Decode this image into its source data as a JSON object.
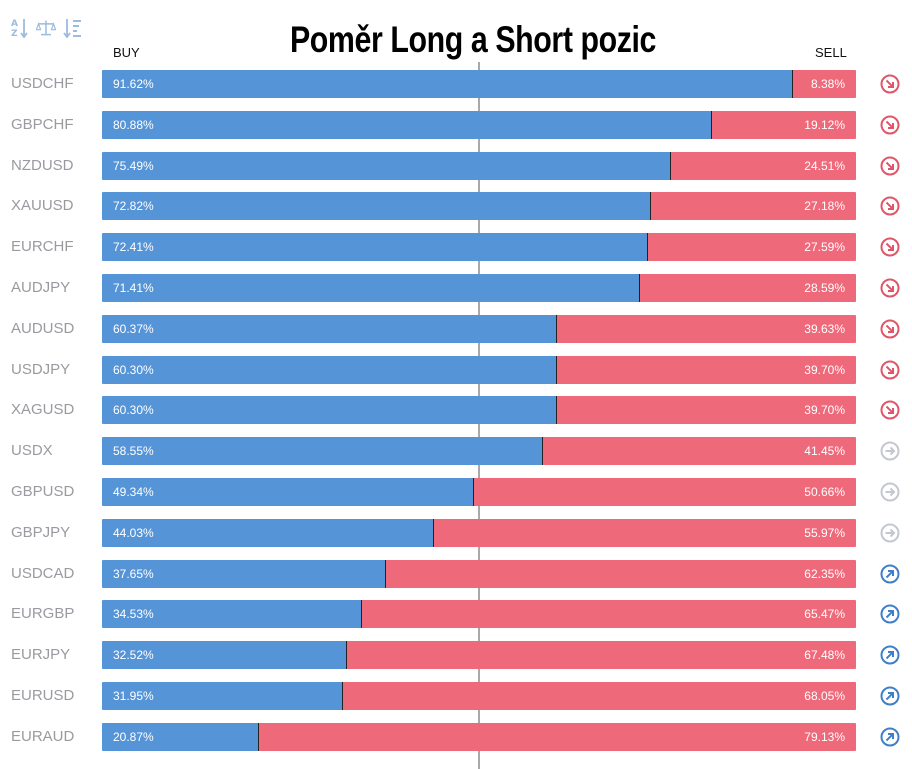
{
  "title": "Poměr Long a Short pozic",
  "labels": {
    "buy": "BUY",
    "sell": "SELL"
  },
  "toolbar": [
    {
      "name": "sort-alpha-icon"
    },
    {
      "name": "scale-balance-icon"
    },
    {
      "name": "sort-value-icon"
    }
  ],
  "colors": {
    "buy": "#5694d8",
    "sell": "#ee6a7b",
    "down": "#e05568",
    "neutral": "#c3c8cf",
    "up": "#3f7fc8"
  },
  "chart_data": {
    "type": "bar",
    "stacked": true,
    "orientation": "horizontal",
    "series": [
      {
        "name": "BUY",
        "unit": "%"
      },
      {
        "name": "SELL",
        "unit": "%"
      }
    ],
    "rows": [
      {
        "symbol": "USDCHF",
        "buy": "91.62%",
        "sell": "8.38%",
        "buy_value": 91.62,
        "trend": "down"
      },
      {
        "symbol": "GBPCHF",
        "buy": "80.88%",
        "sell": "19.12%",
        "buy_value": 80.88,
        "trend": "down"
      },
      {
        "symbol": "NZDUSD",
        "buy": "75.49%",
        "sell": "24.51%",
        "buy_value": 75.49,
        "trend": "down"
      },
      {
        "symbol": "XAUUSD",
        "buy": "72.82%",
        "sell": "27.18%",
        "buy_value": 72.82,
        "trend": "down"
      },
      {
        "symbol": "EURCHF",
        "buy": "72.41%",
        "sell": "27.59%",
        "buy_value": 72.41,
        "trend": "down"
      },
      {
        "symbol": "AUDJPY",
        "buy": "71.41%",
        "sell": "28.59%",
        "buy_value": 71.41,
        "trend": "down"
      },
      {
        "symbol": "AUDUSD",
        "buy": "60.37%",
        "sell": "39.63%",
        "buy_value": 60.37,
        "trend": "down"
      },
      {
        "symbol": "USDJPY",
        "buy": "60.30%",
        "sell": "39.70%",
        "buy_value": 60.3,
        "trend": "down"
      },
      {
        "symbol": "XAGUSD",
        "buy": "60.30%",
        "sell": "39.70%",
        "buy_value": 60.3,
        "trend": "down"
      },
      {
        "symbol": "USDX",
        "buy": "58.55%",
        "sell": "41.45%",
        "buy_value": 58.55,
        "trend": "neutral"
      },
      {
        "symbol": "GBPUSD",
        "buy": "49.34%",
        "sell": "50.66%",
        "buy_value": 49.34,
        "trend": "neutral"
      },
      {
        "symbol": "GBPJPY",
        "buy": "44.03%",
        "sell": "55.97%",
        "buy_value": 44.03,
        "trend": "neutral"
      },
      {
        "symbol": "USDCAD",
        "buy": "37.65%",
        "sell": "62.35%",
        "buy_value": 37.65,
        "trend": "up"
      },
      {
        "symbol": "EURGBP",
        "buy": "34.53%",
        "sell": "65.47%",
        "buy_value": 34.53,
        "trend": "up"
      },
      {
        "symbol": "EURJPY",
        "buy": "32.52%",
        "sell": "67.48%",
        "buy_value": 32.52,
        "trend": "up"
      },
      {
        "symbol": "EURUSD",
        "buy": "31.95%",
        "sell": "68.05%",
        "buy_value": 31.95,
        "trend": "up"
      },
      {
        "symbol": "EURAUD",
        "buy": "20.87%",
        "sell": "79.13%",
        "buy_value": 20.87,
        "trend": "up"
      }
    ]
  }
}
